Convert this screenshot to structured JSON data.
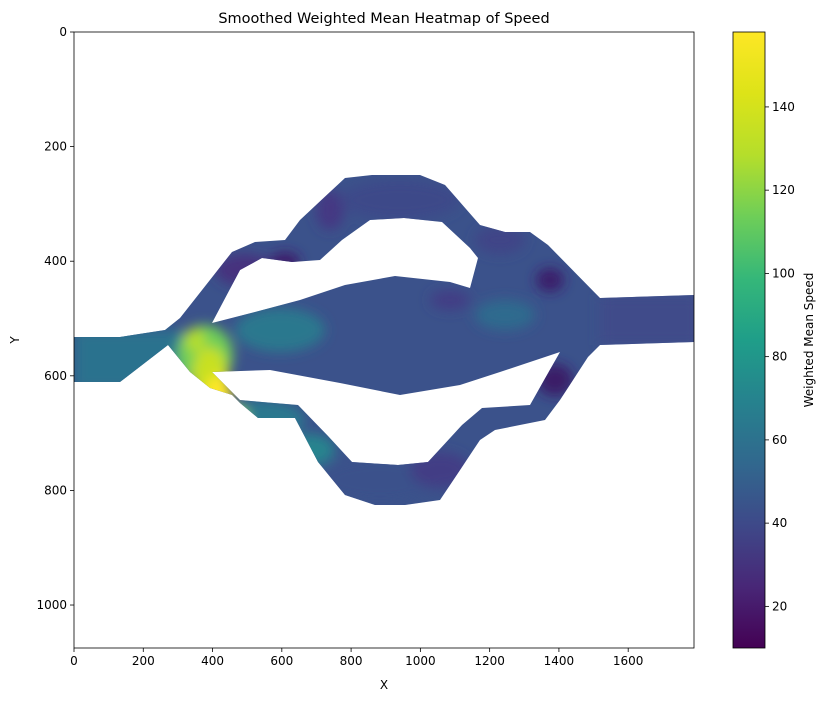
{
  "chart_data": {
    "type": "heatmap",
    "title": "Smoothed Weighted Mean Heatmap of Speed",
    "xlabel": "X",
    "ylabel": "Y",
    "xlim": [
      0,
      1790
    ],
    "ylim": [
      1075,
      0
    ],
    "x_ticks": [
      "0",
      "200",
      "400",
      "600",
      "800",
      "1000",
      "1200",
      "1400",
      "1600"
    ],
    "y_ticks": [
      "0",
      "200",
      "400",
      "600",
      "800",
      "1000"
    ],
    "colormap": "viridis",
    "colorbar": {
      "label": "Weighted Mean Speed",
      "range": [
        10,
        158
      ],
      "ticks": [
        "20",
        "40",
        "60",
        "80",
        "100",
        "120",
        "140"
      ]
    },
    "grid": false,
    "regions": [
      {
        "name": "left-entry-road",
        "x_range": [
          0,
          280
        ],
        "y_center": 575,
        "mean_speed": 62
      },
      {
        "name": "left-merge-hotspot",
        "x_range": [
          300,
          480
        ],
        "y_center": 620,
        "peak_speed": 150
      },
      {
        "name": "upper-arc",
        "x_range": [
          280,
          1560
        ],
        "y_top": 250,
        "mean_speed": 45
      },
      {
        "name": "inner-ring",
        "x_range": [
          330,
          1460
        ],
        "y_center": 535,
        "mean_speed": 47
      },
      {
        "name": "lower-arc",
        "x_range": [
          300,
          1560
        ],
        "y_bottom": 825,
        "mean_speed": 47
      },
      {
        "name": "right-exit-road",
        "x_range": [
          1560,
          1790
        ],
        "y_center": 505,
        "mean_speed": 50
      }
    ]
  }
}
